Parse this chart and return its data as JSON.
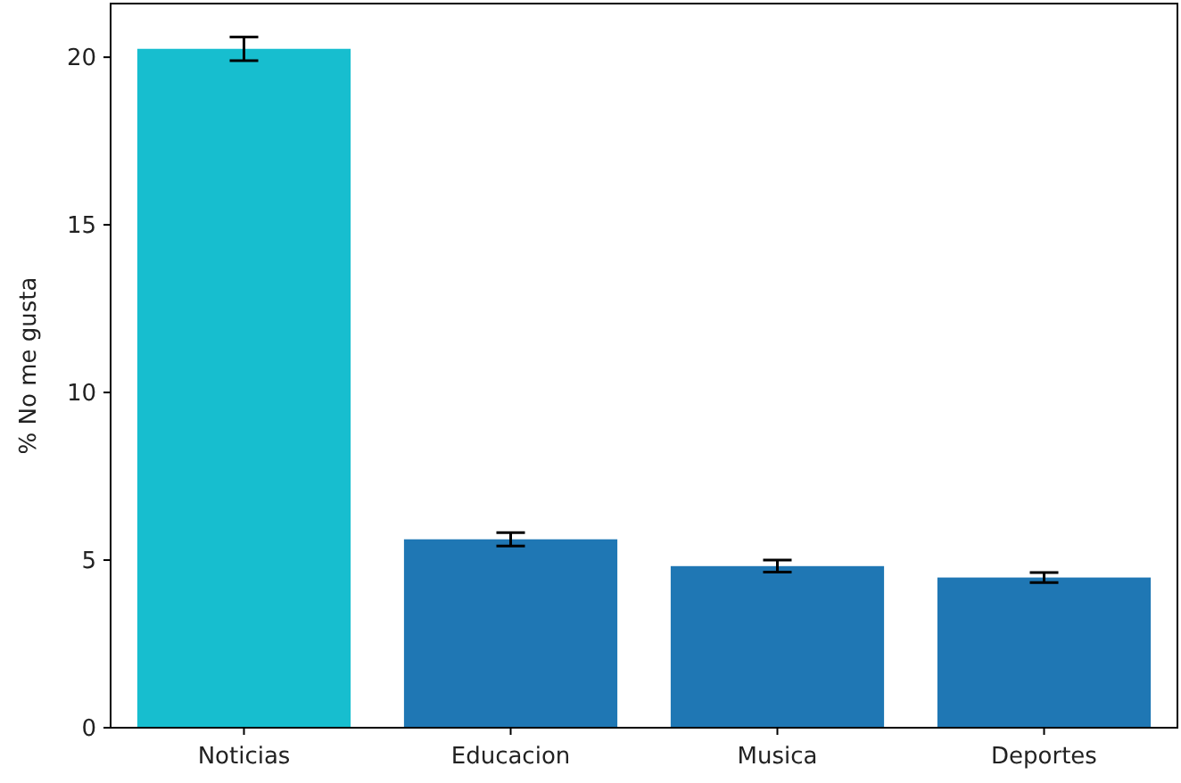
{
  "chart_data": {
    "type": "bar",
    "ylabel": "% No me gusta",
    "categories": [
      "Noticias",
      "Educacion",
      "Musica",
      "Deportes"
    ],
    "values": [
      20.25,
      5.62,
      4.82,
      4.48
    ],
    "colors": [
      "#17becf",
      "#1f77b4",
      "#1f77b4",
      "#1f77b4"
    ],
    "errors": [
      0.35,
      0.2,
      0.18,
      0.15
    ],
    "ylim": [
      0,
      21.6
    ],
    "yticks": [
      0,
      5,
      10,
      15,
      20
    ],
    "grid": false
  }
}
